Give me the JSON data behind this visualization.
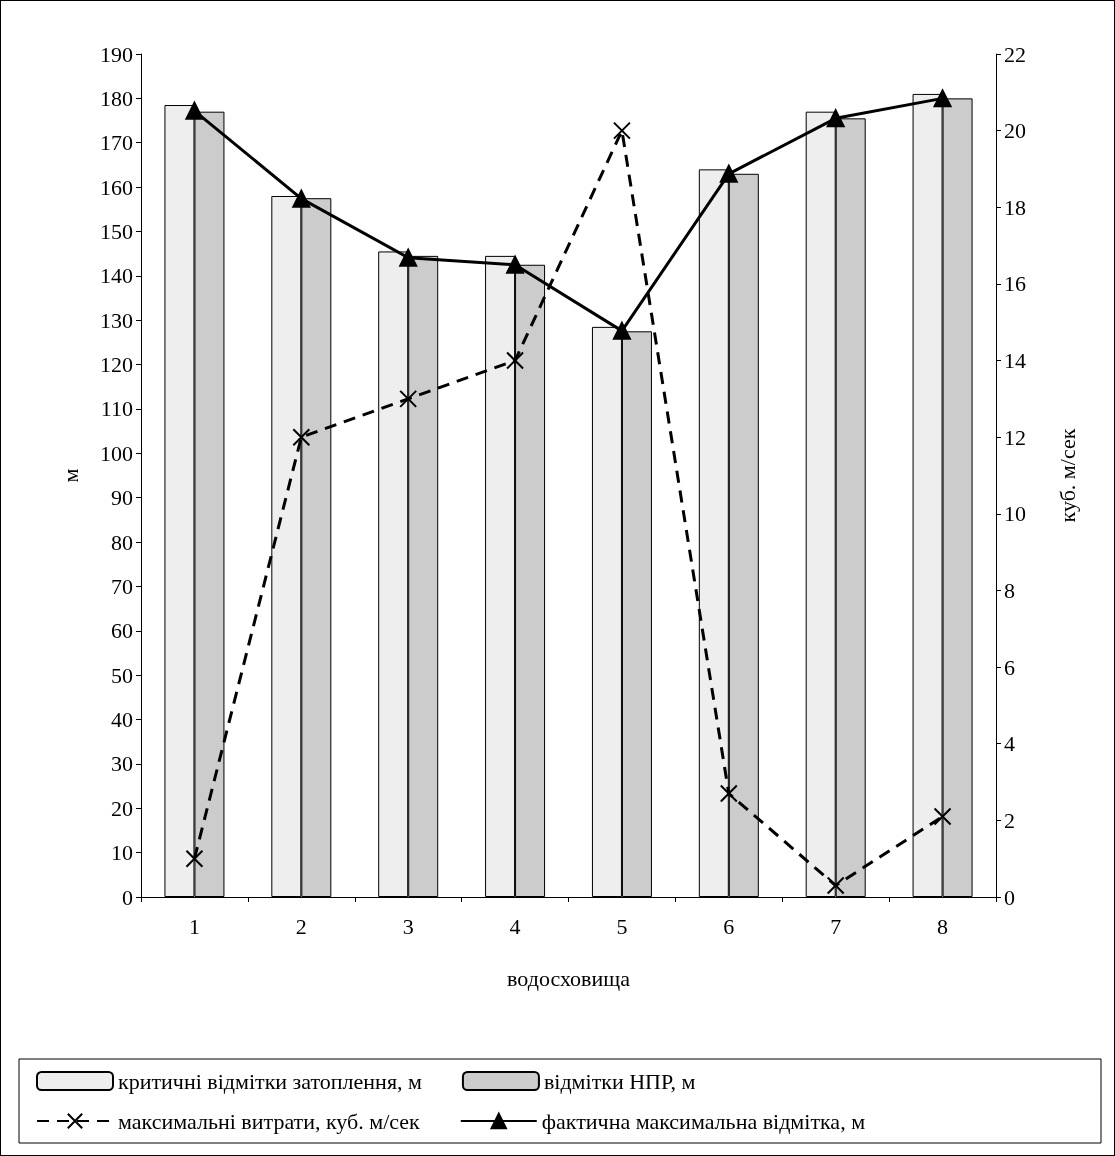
{
  "chart_data": {
    "type": "bar",
    "xlabel": "водосховища",
    "ylabel": "м",
    "y2label": "куб. м/сек",
    "categories": [
      "1",
      "2",
      "3",
      "4",
      "5",
      "6",
      "7",
      "8"
    ],
    "series": [
      {
        "name": "критичні відмітки затоплення, м",
        "color": "#eeeeee",
        "values": [
          178.5,
          158,
          145.5,
          144.5,
          128.5,
          164,
          177,
          181
        ]
      },
      {
        "name": "відмітки НПР, м",
        "color": "#cccccc",
        "values": [
          177,
          157.5,
          144.5,
          142.5,
          127.5,
          163,
          175.5,
          180
        ]
      },
      {
        "name": "максимальні витрати, куб. м/сек",
        "type": "line",
        "axis": "y2",
        "color": "#000000",
        "marker": "cross",
        "line_style": "dashed",
        "values": [
          1,
          12,
          13,
          14,
          20,
          2.7,
          0.3,
          2.1
        ]
      },
      {
        "name": "фактична максимальна відмітка, м",
        "type": "line",
        "color": "#000000",
        "marker": "triangle",
        "line_style": "solid",
        "values": [
          177.2,
          157.4,
          144.1,
          142.5,
          127.6,
          163,
          175.5,
          180
        ]
      }
    ],
    "ylim": [
      0,
      190
    ],
    "yticks": [
      0,
      10,
      20,
      30,
      40,
      50,
      60,
      70,
      80,
      90,
      100,
      110,
      120,
      130,
      140,
      150,
      160,
      170,
      180,
      190
    ],
    "y2lim": [
      0,
      22
    ],
    "y2ticks": [
      0,
      2,
      4,
      6,
      8,
      10,
      12,
      14,
      16,
      18,
      20,
      22
    ],
    "grid": false,
    "legend": "bottom"
  }
}
